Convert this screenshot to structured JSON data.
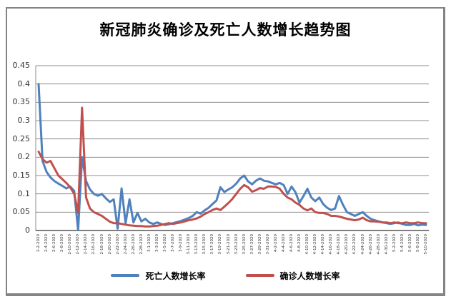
{
  "window": {
    "background": "#ffffff",
    "frame_border_color": "#848484"
  },
  "chart_data": {
    "type": "line",
    "title": "新冠肺炎确诊及死亡人数增长趋势图",
    "xlabel": "",
    "ylabel": "",
    "ylim": [
      0,
      0.45
    ],
    "ytick_step": 0.05,
    "yticks": [
      "0",
      "0.05",
      "0.1",
      "0.15",
      "0.2",
      "0.25",
      "0.3",
      "0.35",
      "0.4",
      "0.45"
    ],
    "grid": true,
    "legend_position": "bottom",
    "x_label_interval": 2,
    "x_label_rotation": -90,
    "colors": {
      "grid": "#8C8C8C",
      "axis": "#7F7F7F",
      "tick_text": "#333333"
    },
    "categories": [
      "2-2-2020",
      "2-3-2020",
      "2-4-2020",
      "2-5-2020",
      "2-6-2020",
      "2-7-2020",
      "2-8-2020",
      "2-9-2020",
      "2-10-2020",
      "2-11-2020",
      "2-12-2020",
      "2-13-2020",
      "2-14-2020",
      "2-15-2020",
      "2-16-2020",
      "2-17-2020",
      "2-18-2020",
      "2-19-2020",
      "2-20-2020",
      "2-21-2020",
      "2-22-2020",
      "2-23-2020",
      "2-24-2020",
      "2-25-2020",
      "2-26-2020",
      "2-27-2020",
      "2-28-2020",
      "2-29-2020",
      "3-1-2020",
      "3-2-2020",
      "3-3-2020",
      "3-4-2020",
      "3-5-2020",
      "3-6-2020",
      "3-7-2020",
      "3-8-2020",
      "3-9-2020",
      "3-10-2020",
      "3-11-2020",
      "3-12-2020",
      "3-13-2020",
      "3-14-2020",
      "3-15-2020",
      "3-16-2020",
      "3-17-2020",
      "3-18-2020",
      "3-19-2020",
      "3-20-2020",
      "3-21-2020",
      "3-22-2020",
      "3-23-2020",
      "3-24-2020",
      "3-25-2020",
      "3-26-2020",
      "3-27-2020",
      "3-28-2020",
      "3-29-2020",
      "3-30-2020",
      "3-31-2020",
      "4-1-2020",
      "4-2-2020",
      "4-3-2020",
      "4-4-2020",
      "4-5-2020",
      "4-6-2020",
      "4-7-2020",
      "4-8-2020",
      "4-9-2020",
      "4-10-2020",
      "4-11-2020",
      "4-12-2020",
      "4-13-2020",
      "4-14-2020",
      "4-15-2020",
      "4-16-2020",
      "4-17-2020",
      "4-18-2020",
      "4-19-2020",
      "4-20-2020",
      "4-21-2020",
      "4-22-2020",
      "4-23-2020",
      "4-24-2020",
      "4-25-2020",
      "4-26-2020",
      "4-27-2020",
      "4-28-2020",
      "4-29-2020",
      "4-30-2020",
      "5-1-2020",
      "5-2-2020",
      "5-3-2020",
      "5-4-2020",
      "5-5-2020",
      "5-6-2020",
      "5-7-2020",
      "5-8-2020",
      "5-9-2020",
      "5-10-2020"
    ],
    "series": [
      {
        "key": "death-rate",
        "name": "死亡人数增长率",
        "color": "#4F81BD",
        "values": [
          0.4,
          0.19,
          0.16,
          0.145,
          0.135,
          0.128,
          0.122,
          0.115,
          0.12,
          0.108,
          0.001,
          0.2,
          0.135,
          0.112,
          0.1,
          0.095,
          0.1,
          0.088,
          0.078,
          0.085,
          0.005,
          0.115,
          0.02,
          0.085,
          0.022,
          0.048,
          0.025,
          0.032,
          0.022,
          0.018,
          0.022,
          0.018,
          0.015,
          0.017,
          0.02,
          0.023,
          0.026,
          0.03,
          0.034,
          0.04,
          0.05,
          0.046,
          0.055,
          0.062,
          0.072,
          0.082,
          0.118,
          0.105,
          0.112,
          0.118,
          0.128,
          0.142,
          0.15,
          0.134,
          0.126,
          0.136,
          0.142,
          0.136,
          0.134,
          0.13,
          0.126,
          0.13,
          0.124,
          0.1,
          0.12,
          0.104,
          0.076,
          0.094,
          0.114,
          0.09,
          0.08,
          0.09,
          0.072,
          0.062,
          0.056,
          0.06,
          0.094,
          0.07,
          0.05,
          0.045,
          0.04,
          0.045,
          0.05,
          0.04,
          0.032,
          0.028,
          0.025,
          0.022,
          0.02,
          0.018,
          0.02,
          0.022,
          0.018,
          0.015,
          0.015,
          0.018,
          0.014,
          0.016,
          0.015
        ]
      },
      {
        "key": "confirmed-rate",
        "name": "确诊人数增长率",
        "color": "#C0504D",
        "values": [
          0.215,
          0.195,
          0.185,
          0.19,
          0.17,
          0.15,
          0.14,
          0.13,
          0.118,
          0.1,
          0.048,
          0.335,
          0.09,
          0.06,
          0.05,
          0.045,
          0.04,
          0.032,
          0.024,
          0.02,
          0.02,
          0.018,
          0.016,
          0.014,
          0.013,
          0.012,
          0.012,
          0.011,
          0.011,
          0.012,
          0.013,
          0.015,
          0.018,
          0.02,
          0.018,
          0.02,
          0.022,
          0.025,
          0.028,
          0.03,
          0.033,
          0.038,
          0.045,
          0.05,
          0.056,
          0.06,
          0.056,
          0.065,
          0.075,
          0.086,
          0.1,
          0.114,
          0.124,
          0.118,
          0.106,
          0.11,
          0.116,
          0.114,
          0.12,
          0.12,
          0.119,
          0.114,
          0.1,
          0.09,
          0.085,
          0.076,
          0.07,
          0.06,
          0.055,
          0.06,
          0.05,
          0.048,
          0.048,
          0.045,
          0.04,
          0.04,
          0.038,
          0.035,
          0.032,
          0.03,
          0.028,
          0.03,
          0.035,
          0.028,
          0.025,
          0.025,
          0.024,
          0.022,
          0.022,
          0.02,
          0.022,
          0.02,
          0.02,
          0.022,
          0.02,
          0.02,
          0.022,
          0.02,
          0.02
        ]
      }
    ]
  }
}
